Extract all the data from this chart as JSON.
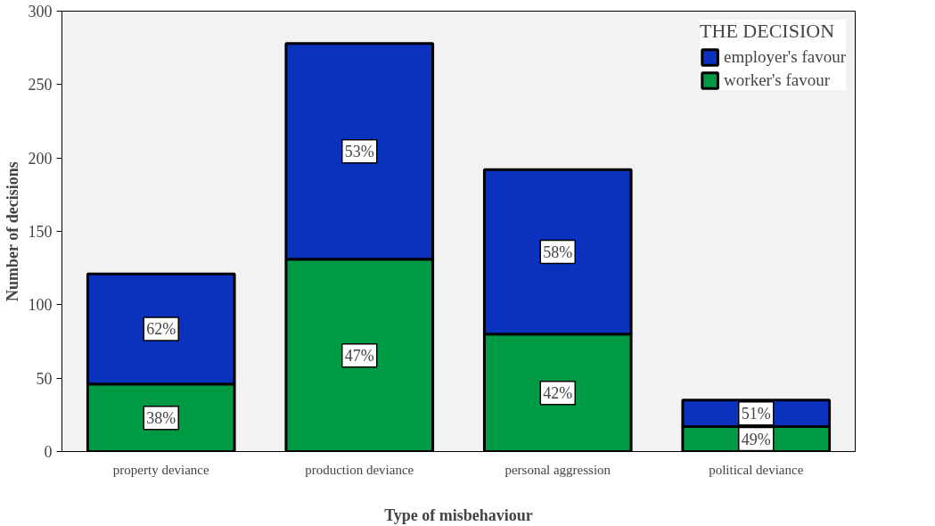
{
  "chart_data": {
    "type": "bar",
    "stacked": true,
    "xlabel": "Type of misbehaviour",
    "ylabel": "Number of decisions",
    "legend_title": "THE DECISION",
    "legend": "top right",
    "grid": false,
    "categories": [
      "property deviance",
      "production deviance",
      "personal aggression",
      "political deviance"
    ],
    "ylim": [
      0,
      300
    ],
    "yticks": [
      0,
      50,
      100,
      150,
      200,
      250,
      300
    ],
    "series": [
      {
        "name": "worker's favour",
        "color": "#009a44",
        "values": [
          46,
          131,
          80,
          17
        ]
      },
      {
        "name": "employer's favour",
        "color": "#0a32be",
        "values": [
          75,
          147,
          112,
          18
        ]
      }
    ],
    "annotations": [
      {
        "text": "38%",
        "x": "property deviance",
        "y": 23
      },
      {
        "text": "47%",
        "x": "production deviance",
        "y": 65.5
      },
      {
        "text": "42%",
        "x": "personal aggression",
        "y": 40
      },
      {
        "text": "49%",
        "x": "political deviance",
        "y": 8.5
      },
      {
        "text": "62%",
        "x": "property deviance",
        "y": 83.5
      },
      {
        "text": "53%",
        "x": "production deviance",
        "y": 204.5
      },
      {
        "text": "58%",
        "x": "personal aggression",
        "y": 136
      },
      {
        "text": "51%",
        "x": "political deviance",
        "y": 26
      }
    ]
  }
}
